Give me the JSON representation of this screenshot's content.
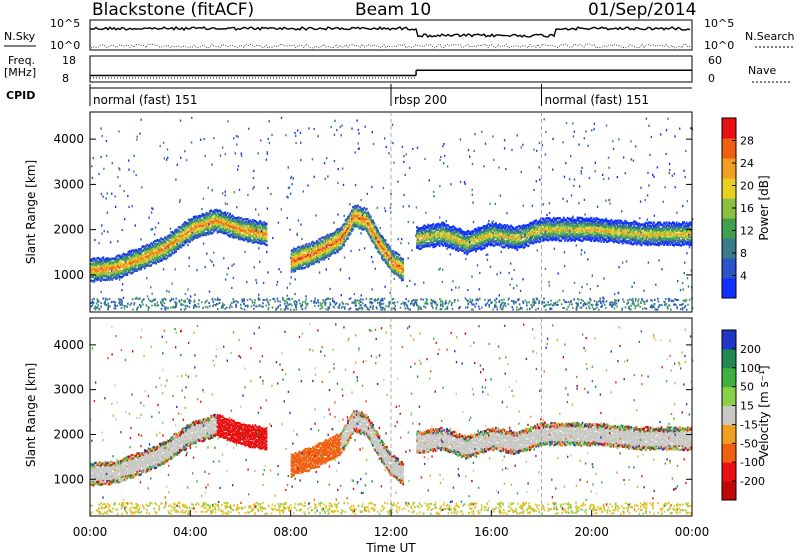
{
  "header": {
    "station": "Blackstone (fitACF)",
    "beam": "Beam 10",
    "date": "01/Sep/2014"
  },
  "panel_labels": {
    "nsky": "N.Sky",
    "nsearch": "N.Search",
    "freq_line1": "Freq.",
    "freq_line2": "[MHz]",
    "nave": "Nave",
    "cpid": "CPID"
  },
  "top_axis_ticks": {
    "nsky_top": "10^5",
    "nsky_bottom": "10^0",
    "nsearch_top": "10^5",
    "nsearch_bottom": "10^0",
    "freq_top": "18",
    "freq_bottom": "8",
    "nave_top": "60",
    "nave_bottom": "0"
  },
  "chart_data": {
    "type": "heatmap",
    "x": {
      "label": "Time UT",
      "range": [
        "00:00",
        "24:00"
      ],
      "ticks": [
        "00:00",
        "04:00",
        "08:00",
        "12:00",
        "16:00",
        "20:00",
        "00:00"
      ]
    },
    "cpid_segments": [
      {
        "label": "normal (fast) 151",
        "start_h": 0,
        "end_h": 12
      },
      {
        "label": "rbsp 200",
        "start_h": 12,
        "end_h": 18
      },
      {
        "label": "normal (fast) 151",
        "start_h": 18,
        "end_h": 24
      }
    ],
    "freq_mhz": [
      {
        "start_h": 0,
        "end_h": 13,
        "value": 10.5
      },
      {
        "start_h": 13,
        "end_h": 24,
        "value": 12.5
      }
    ],
    "power_panel": {
      "ylabel": "Slant Range [km]",
      "ylim": [
        180,
        4600
      ],
      "yticks": [
        1000,
        2000,
        3000,
        4000
      ],
      "colorbar": {
        "label": "Power [dB]",
        "ticks": [
          4,
          8,
          12,
          16,
          20,
          24,
          28
        ],
        "range": [
          0,
          32
        ],
        "colors": [
          "#1030ff",
          "#2a54c8",
          "#3a7a8a",
          "#40a050",
          "#8cc040",
          "#e8d020",
          "#f0a020",
          "#f06010",
          "#e81010"
        ]
      },
      "bands": [
        {
          "time_h": [
            0,
            1,
            2,
            3,
            3.5,
            4,
            5,
            5.5,
            6,
            7
          ],
          "range_km": [
            1100,
            1150,
            1350,
            1600,
            1800,
            2000,
            2200,
            2100,
            2000,
            1900
          ],
          "peak_db": 26
        },
        {
          "time_h": [
            8,
            9,
            10,
            10.5,
            11,
            11.5,
            12,
            12.5
          ],
          "range_km": [
            1300,
            1500,
            1800,
            2300,
            2200,
            1700,
            1300,
            1100
          ],
          "peak_db": 28
        },
        {
          "time_h": [
            13,
            14,
            15,
            16,
            17,
            18,
            20,
            22,
            24
          ],
          "range_km": [
            1800,
            1900,
            1700,
            1900,
            1800,
            2000,
            2000,
            1900,
            1900
          ],
          "peak_db": 22
        }
      ]
    },
    "velocity_panel": {
      "ylabel": "Slant Range [km]",
      "ylim": [
        180,
        4600
      ],
      "yticks": [
        1000,
        2000,
        3000,
        4000
      ],
      "colorbar": {
        "label": "Velocity [m s⁻¹]",
        "ticks": [
          200,
          100,
          50,
          15,
          -15,
          -50,
          -100,
          -200
        ],
        "colors": [
          "#2036c8",
          "#208a50",
          "#40b040",
          "#88d048",
          "#c8c8c4",
          "#f0a020",
          "#f06010",
          "#e81010",
          "#c00808"
        ]
      }
    }
  }
}
